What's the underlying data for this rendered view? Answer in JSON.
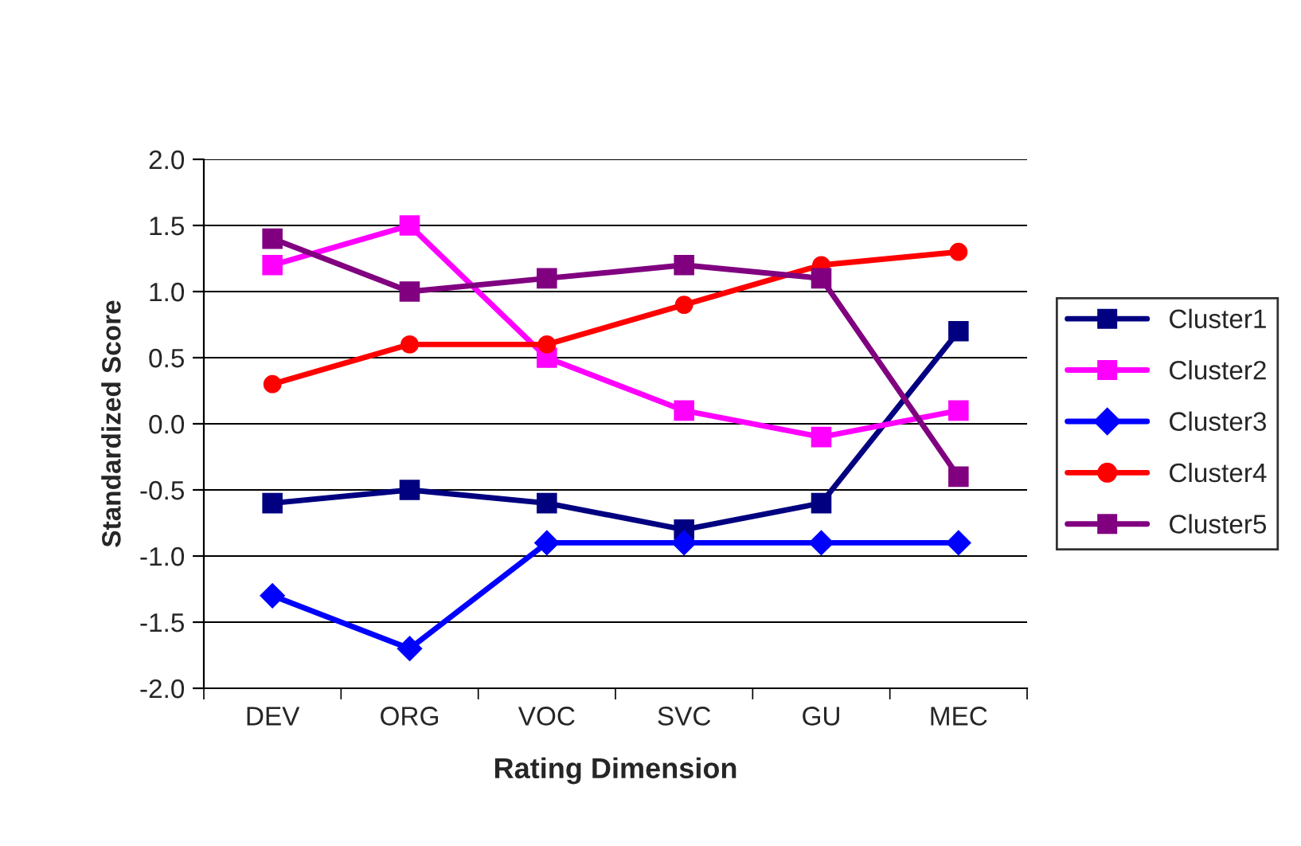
{
  "chart_data": {
    "type": "line",
    "xlabel": "Rating Dimension",
    "ylabel": "Standardized Score",
    "categories": [
      "DEV",
      "ORG",
      "VOC",
      "SVC",
      "GU",
      "MEC"
    ],
    "series": [
      {
        "name": "Cluster1",
        "color": "#000080",
        "marker": "square",
        "values": [
          -0.6,
          -0.5,
          -0.6,
          -0.8,
          -0.6,
          0.7
        ]
      },
      {
        "name": "Cluster2",
        "color": "#ff00ff",
        "marker": "square",
        "values": [
          1.2,
          1.5,
          0.5,
          0.1,
          -0.1,
          0.1
        ]
      },
      {
        "name": "Cluster3",
        "color": "#0000ff",
        "marker": "diamond",
        "values": [
          -1.3,
          -1.7,
          -0.9,
          -0.9,
          -0.9,
          -0.9
        ]
      },
      {
        "name": "Cluster4",
        "color": "#ff0000",
        "marker": "circle",
        "values": [
          0.3,
          0.6,
          0.6,
          0.9,
          1.2,
          1.3
        ]
      },
      {
        "name": "Cluster5",
        "color": "#800080",
        "marker": "square",
        "values": [
          1.4,
          1.0,
          1.1,
          1.2,
          1.1,
          -0.4
        ]
      }
    ],
    "ylim": [
      -2.0,
      2.0
    ],
    "yticks": [
      {
        "value": -2.0,
        "label": "-2.0"
      },
      {
        "value": -1.5,
        "label": "-1.5"
      },
      {
        "value": -1.0,
        "label": "-1.0"
      },
      {
        "value": -0.5,
        "label": "-0.5"
      },
      {
        "value": 0.0,
        "label": "0.0"
      },
      {
        "value": 0.5,
        "label": "0.5"
      },
      {
        "value": 1.0,
        "label": "1.0"
      },
      {
        "value": 1.5,
        "label": "1.5"
      },
      {
        "value": 2.0,
        "label": "2.0"
      }
    ],
    "grid": "y",
    "legend": "right",
    "line_style": "solid"
  }
}
